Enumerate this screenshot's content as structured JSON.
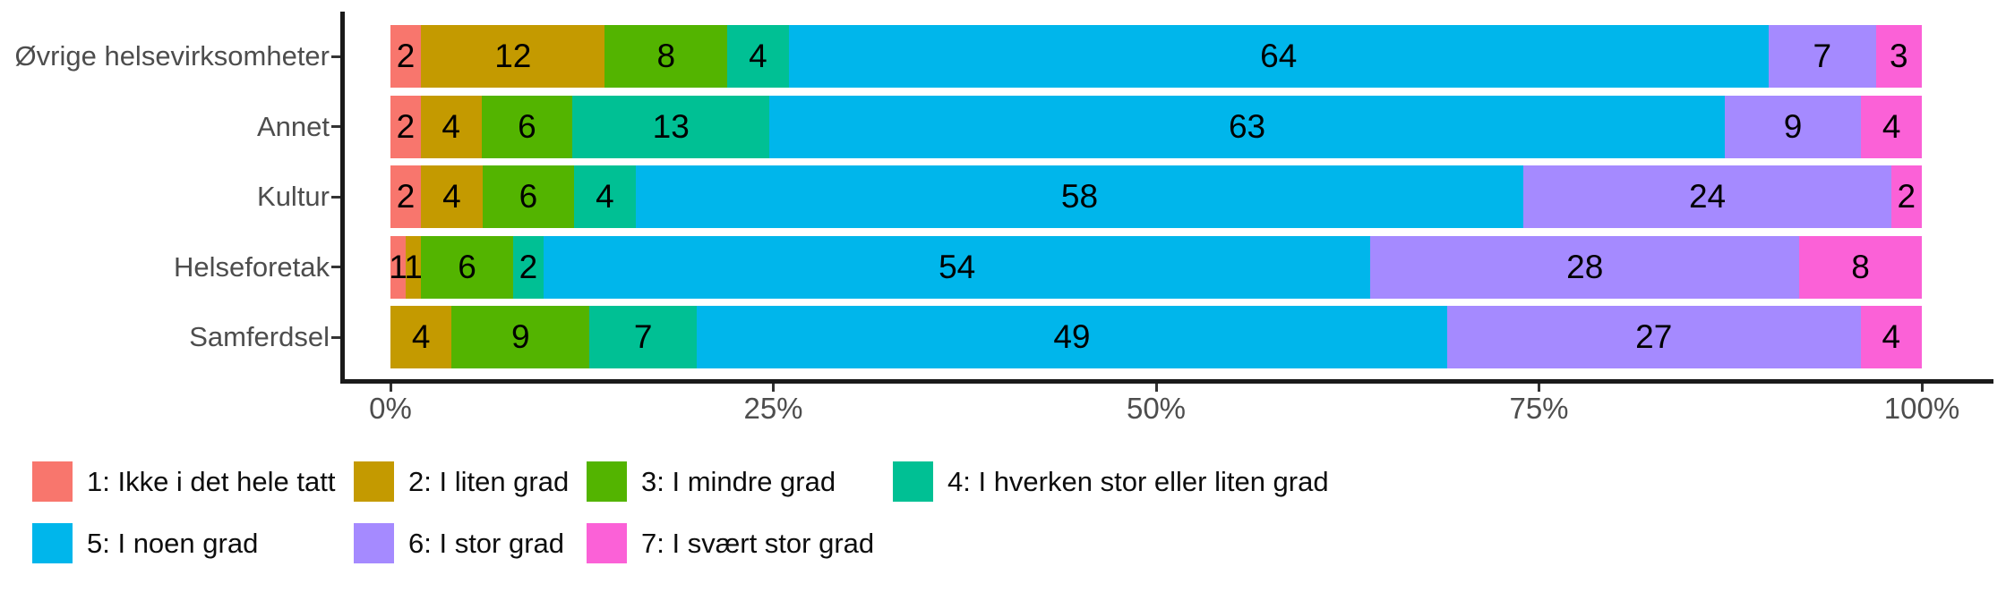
{
  "chart_data": {
    "type": "bar",
    "orientation": "horizontal",
    "stacked": true,
    "stack_mode": "fill-100-percent",
    "title": "",
    "xlabel": "",
    "ylabel": "",
    "grid": false,
    "legend_position": "bottom",
    "xlim": [
      0,
      100
    ],
    "x_ticks": [
      {
        "value": 0,
        "label": "0%"
      },
      {
        "value": 25,
        "label": "25%"
      },
      {
        "value": 50,
        "label": "50%"
      },
      {
        "value": 75,
        "label": "75%"
      },
      {
        "value": 100,
        "label": "100%"
      }
    ],
    "categories": [
      "Øvrige helsevirksomheter",
      "Annet",
      "Kultur",
      "Helseforetak",
      "Samferdsel"
    ],
    "series": [
      {
        "name": "1: Ikke i det hele tatt",
        "color": "#F8766D",
        "values": [
          2,
          2,
          2,
          1,
          0
        ]
      },
      {
        "name": "2: I liten grad",
        "color": "#C49A00",
        "values": [
          12,
          4,
          4,
          1,
          4
        ]
      },
      {
        "name": "3: I mindre grad",
        "color": "#53B400",
        "values": [
          8,
          6,
          6,
          6,
          9
        ]
      },
      {
        "name": "4: I hverken stor eller liten grad",
        "color": "#00C094",
        "values": [
          4,
          13,
          4,
          2,
          7
        ]
      },
      {
        "name": "5: I noen grad",
        "color": "#00B6EB",
        "values": [
          64,
          63,
          58,
          54,
          49
        ]
      },
      {
        "name": "6: I stor grad",
        "color": "#A58AFF",
        "values": [
          7,
          9,
          24,
          28,
          27
        ]
      },
      {
        "name": "7: I svært stor grad",
        "color": "#FB61D7",
        "values": [
          3,
          4,
          2,
          8,
          4
        ]
      }
    ],
    "bar_value_labels_shown": true
  },
  "colors": {
    "axis_line": "#1a1a1a",
    "axis_text": "#4d4d4d",
    "bar_label_text": "#000000",
    "legend_text": "#0d0d0d",
    "background": "#ffffff"
  }
}
